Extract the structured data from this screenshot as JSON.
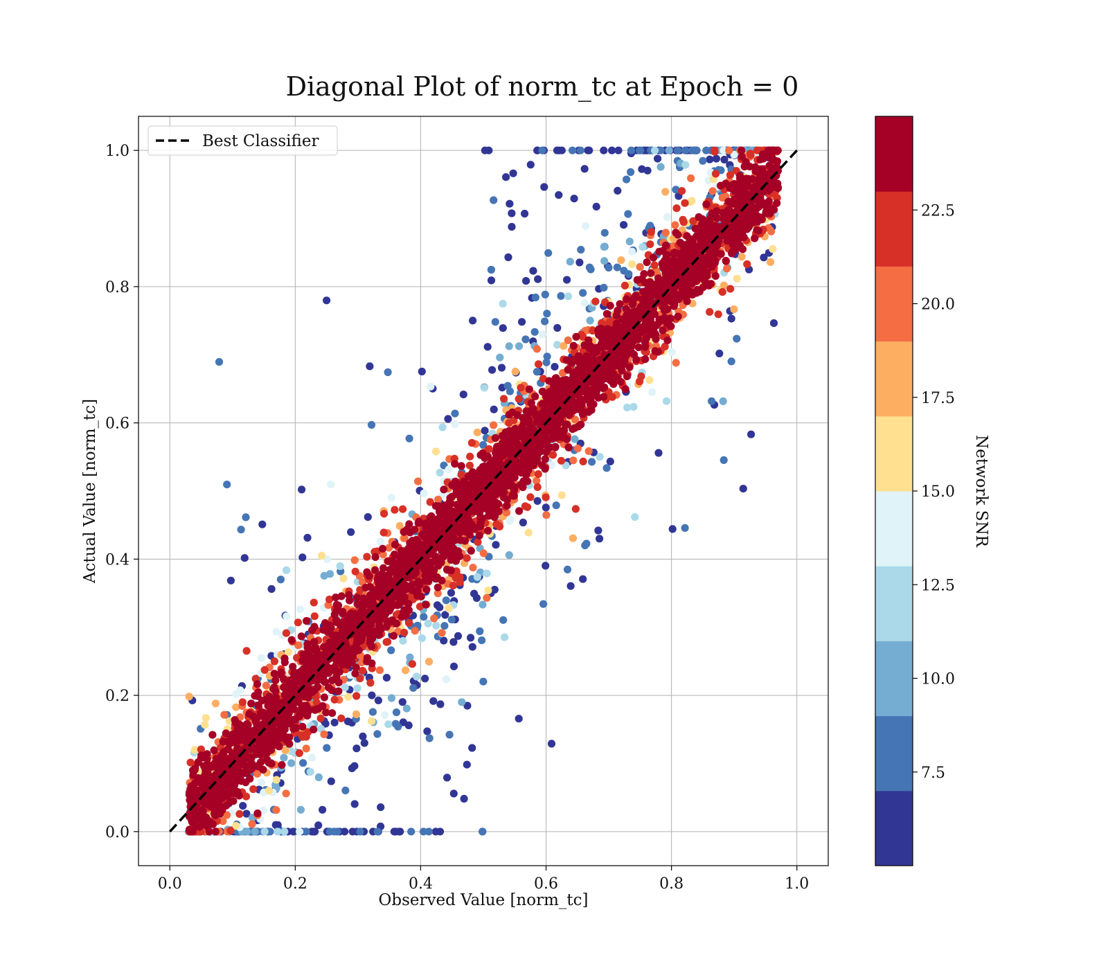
{
  "chart_data": {
    "type": "scatter",
    "title": "Diagonal Plot of norm_tc at Epoch = 0",
    "xlabel": "Observed Value [norm_tc]",
    "ylabel": "Actual Value [norm_tc]",
    "xlim": [
      -0.05,
      1.05
    ],
    "ylim": [
      -0.05,
      1.05
    ],
    "x_ticks": [
      "0.0",
      "0.2",
      "0.4",
      "0.6",
      "0.8",
      "1.0"
    ],
    "y_ticks": [
      "0.0",
      "0.2",
      "0.4",
      "0.6",
      "0.8",
      "1.0"
    ],
    "grid": true,
    "legend": {
      "position": "top-left",
      "entries": [
        {
          "label": "Best Classifier",
          "style": "dashed",
          "color": "#000000"
        }
      ]
    },
    "reference_line": {
      "x": [
        0.0,
        1.0
      ],
      "y": [
        0.0,
        1.0
      ],
      "style": "dashed",
      "color": "#000000"
    },
    "colorbar": {
      "label": "Network SNR",
      "range": [
        5.0,
        25.0
      ],
      "ticks": [
        "7.5",
        "10.0",
        "12.5",
        "15.0",
        "17.5",
        "20.0",
        "22.5"
      ],
      "colormap": "RdYlBu_r (discrete, 10 levels)",
      "colors": [
        "#313695",
        "#4575b4",
        "#74add1",
        "#abd9e9",
        "#e0f3f8",
        "#fee090",
        "#fdae61",
        "#f46d43",
        "#d73027",
        "#a50026"
      ]
    },
    "series": [
      {
        "description_of_points": "dense band of high-SNR points (red) along the diagonal from ~0.03 to ~0.97 observed; lower-SNR points (blue) scattered further from the diagonal, mostly below it at low observed values and above it at high observed values",
        "x_range": [
          0.03,
          0.97
        ],
        "y_range": [
          0.0,
          1.0
        ]
      }
    ]
  }
}
